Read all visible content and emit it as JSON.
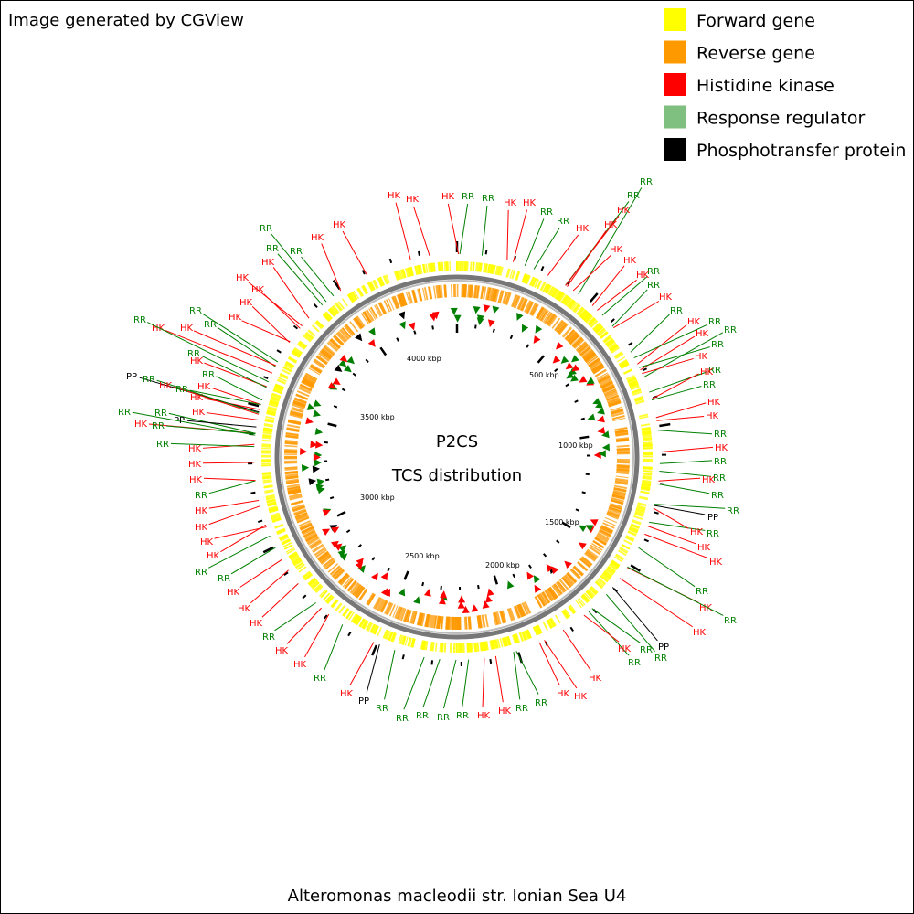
{
  "header": {
    "credit": "Image generated by CGView"
  },
  "legend": [
    {
      "label": "Forward gene",
      "color": "#ffff00"
    },
    {
      "label": "Reverse gene",
      "color": "#ff9900"
    },
    {
      "label": "Histidine kinase",
      "color": "#ff0000"
    },
    {
      "label": "Response regulator",
      "color": "#7fbf7f"
    },
    {
      "label": "Phosphotransfer protein",
      "color": "#000000"
    }
  ],
  "map": {
    "title": "P2CS",
    "subtitle": "TCS distribution",
    "scale_labels": [
      "500 kbp",
      "1000 kbp",
      "1500 kbp",
      "2000 kbp",
      "2500 kbp",
      "3000 kbp",
      "3500 kbp",
      "4000 kbp"
    ],
    "feature_labels": [
      "HK",
      "HK",
      "HK",
      "RR",
      "RR",
      "HK",
      "HK",
      "RR",
      "RR",
      "HK",
      "RR",
      "RR",
      "HK",
      "HK",
      "HK",
      "HK",
      "RR",
      "HK",
      "RR",
      "HK",
      "RR",
      "HK",
      "RR",
      "RR",
      "HK",
      "RR",
      "HK",
      "RR",
      "HK",
      "RR",
      "HK",
      "HK",
      "RR",
      "HK",
      "RR",
      "RR",
      "HK",
      "RR",
      "RR",
      "PP",
      "RR",
      "HK",
      "HK",
      "HK",
      "RR",
      "HK",
      "RR",
      "HK",
      "PP",
      "RR",
      "RR",
      "RR",
      "HK",
      "HK",
      "HK",
      "HK",
      "RR",
      "RR",
      "HK",
      "HK",
      "RR",
      "RR",
      "RR",
      "RR",
      "RR",
      "PP",
      "HK",
      "RR",
      "HK",
      "HK",
      "RR",
      "HK",
      "HK",
      "HK",
      "RR",
      "RR",
      "HK",
      "HK",
      "HK",
      "HK",
      "RR",
      "HK",
      "HK",
      "HK",
      "RR",
      "HK",
      "RR",
      "RR",
      "RR",
      "PP",
      "HK",
      "HK",
      "HK",
      "RR",
      "PP",
      "RR",
      "HK",
      "RR",
      "HK",
      "RR",
      "RR",
      "HK",
      "HK",
      "RR",
      "RR",
      "HK",
      "HK",
      "HK",
      "HK",
      "RR",
      "HK",
      "RR",
      "RR",
      "HK",
      "HK"
    ]
  },
  "footer": {
    "organism": "Alteromonas macleodii str. Ionian Sea U4"
  }
}
